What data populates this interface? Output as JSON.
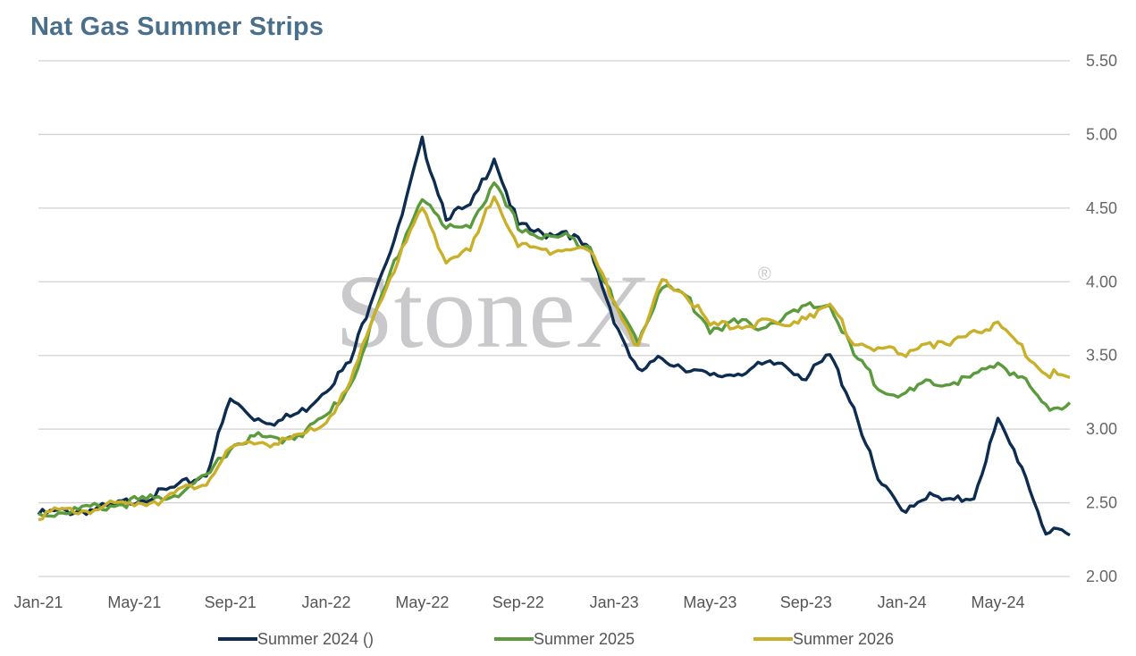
{
  "chart_data": {
    "type": "line",
    "title": "Nat Gas Summer Strips",
    "xlabel": "",
    "ylabel": "",
    "y_axis_side": "right",
    "ylim": [
      2.0,
      5.5
    ],
    "yticks": [
      "5.50",
      "5.00",
      "4.50",
      "4.00",
      "3.50",
      "3.00",
      "2.50",
      "2.00"
    ],
    "xticks": [
      "Jan-21",
      "May-21",
      "Sep-21",
      "Jan-22",
      "May-22",
      "Sep-22",
      "Jan-23",
      "May-23",
      "Sep-23",
      "Jan-24",
      "May-24"
    ],
    "grid": "horizontal",
    "legend_position": "bottom",
    "watermark": "StoneX",
    "watermark_mark": "®",
    "x": [
      "Jan-21",
      "Feb-21",
      "Mar-21",
      "Apr-21",
      "May-21",
      "Jun-21",
      "Jul-21",
      "Aug-21",
      "Sep-21",
      "Oct-21",
      "Nov-21",
      "Dec-21",
      "Jan-22",
      "Feb-22",
      "Mar-22",
      "Apr-22",
      "May-22",
      "Jun-22",
      "Jul-22",
      "Aug-22",
      "Sep-22",
      "Oct-22",
      "Nov-22",
      "Dec-22",
      "Jan-23",
      "Feb-23",
      "Mar-23",
      "Apr-23",
      "May-23",
      "Jun-23",
      "Jul-23",
      "Aug-23",
      "Sep-23",
      "Oct-23",
      "Nov-23",
      "Dec-23",
      "Jan-24",
      "Feb-24",
      "Mar-24",
      "Apr-24",
      "May-24",
      "Jun-24",
      "Jul-24",
      "Aug-24"
    ],
    "series": [
      {
        "name": "Summer 2024 ()",
        "color": "#0d2c4f",
        "values": [
          2.42,
          2.44,
          2.45,
          2.47,
          2.52,
          2.56,
          2.62,
          2.7,
          3.2,
          3.08,
          3.05,
          3.12,
          3.28,
          3.45,
          3.95,
          4.35,
          4.95,
          4.45,
          4.5,
          4.85,
          4.38,
          4.32,
          4.35,
          4.2,
          3.75,
          3.38,
          3.48,
          3.42,
          3.35,
          3.38,
          3.42,
          3.45,
          3.35,
          3.5,
          3.15,
          2.65,
          2.45,
          2.55,
          2.5,
          2.55,
          3.05,
          2.75,
          2.3,
          2.28
        ]
      },
      {
        "name": "Summer 2025",
        "color": "#5b9b3e",
        "values": [
          2.42,
          2.44,
          2.46,
          2.48,
          2.51,
          2.53,
          2.58,
          2.67,
          2.88,
          2.95,
          2.92,
          2.98,
          3.08,
          3.3,
          3.75,
          4.2,
          4.58,
          4.35,
          4.4,
          4.65,
          4.38,
          4.3,
          4.3,
          4.25,
          3.85,
          3.6,
          3.98,
          3.9,
          3.68,
          3.72,
          3.7,
          3.75,
          3.82,
          3.85,
          3.5,
          3.3,
          3.22,
          3.3,
          3.32,
          3.35,
          3.45,
          3.35,
          3.15,
          3.18
        ]
      },
      {
        "name": "Summer 2026",
        "color": "#c9b02a",
        "values": [
          2.42,
          2.44,
          2.45,
          2.48,
          2.5,
          2.52,
          2.58,
          2.65,
          2.85,
          2.92,
          2.9,
          2.95,
          3.05,
          3.3,
          3.78,
          4.15,
          4.5,
          4.15,
          4.2,
          4.6,
          4.25,
          4.2,
          4.25,
          4.2,
          3.88,
          3.55,
          4.0,
          3.92,
          3.7,
          3.7,
          3.72,
          3.7,
          3.78,
          3.82,
          3.6,
          3.55,
          3.5,
          3.6,
          3.55,
          3.68,
          3.7,
          3.55,
          3.38,
          3.35
        ]
      }
    ]
  }
}
